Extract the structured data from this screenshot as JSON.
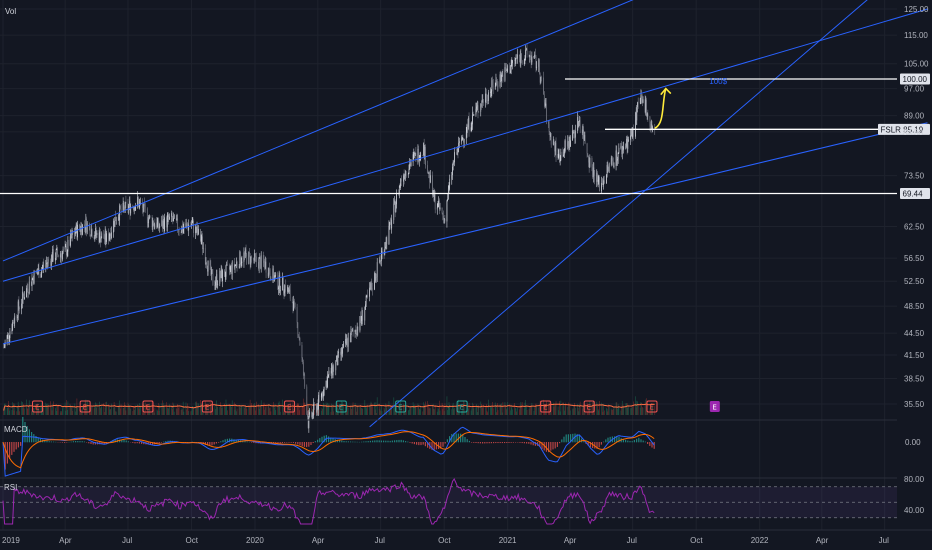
{
  "chart_data": {
    "type": "candlestick",
    "symbol": "FSLR",
    "last_price": "85.19",
    "volume_label": "Vol",
    "x_axis": {
      "range": [
        "2019-01-01",
        "2022-09-01"
      ],
      "ticks": [
        {
          "date": "2019-01-01",
          "label": "2019"
        },
        {
          "date": "2019-04-01",
          "label": "Apr"
        },
        {
          "date": "2019-07-01",
          "label": "Jul"
        },
        {
          "date": "2019-10-01",
          "label": "Oct"
        },
        {
          "date": "2020-01-01",
          "label": "2020"
        },
        {
          "date": "2020-04-01",
          "label": "Apr"
        },
        {
          "date": "2020-07-01",
          "label": "Jul"
        },
        {
          "date": "2020-10-01",
          "label": "Oct"
        },
        {
          "date": "2021-01-01",
          "label": "2021"
        },
        {
          "date": "2021-04-01",
          "label": "Apr"
        },
        {
          "date": "2021-07-01",
          "label": "Jul"
        },
        {
          "date": "2021-10-01",
          "label": "Oct"
        },
        {
          "date": "2022-01-01",
          "label": "2022"
        },
        {
          "date": "2022-04-01",
          "label": "Apr"
        },
        {
          "date": "2022-07-01",
          "label": "Jul"
        }
      ]
    },
    "price_axis": {
      "scale": "log",
      "ticks": [
        "125.00",
        "115.00",
        "105.00",
        "97.00",
        "89.00",
        "84.50",
        "73.50",
        "69.44",
        "62.50",
        "56.50",
        "52.50",
        "48.50",
        "44.50",
        "41.50",
        "38.50",
        "35.50"
      ]
    },
    "price_series": [
      [
        "2019-01-02",
        42.5
      ],
      [
        "2019-01-15",
        46.0
      ],
      [
        "2019-02-01",
        50.5
      ],
      [
        "2019-02-15",
        53.5
      ],
      [
        "2019-03-01",
        55.0
      ],
      [
        "2019-03-15",
        57.0
      ],
      [
        "2019-04-01",
        57.5
      ],
      [
        "2019-04-15",
        61.5
      ],
      [
        "2019-05-01",
        63.0
      ],
      [
        "2019-05-15",
        61.0
      ],
      [
        "2019-06-01",
        60.0
      ],
      [
        "2019-06-15",
        65.0
      ],
      [
        "2019-07-01",
        66.5
      ],
      [
        "2019-07-15",
        67.5
      ],
      [
        "2019-08-01",
        64.0
      ],
      [
        "2019-08-15",
        62.5
      ],
      [
        "2019-09-01",
        64.0
      ],
      [
        "2019-09-15",
        62.0
      ],
      [
        "2019-10-01",
        63.0
      ],
      [
        "2019-10-15",
        60.0
      ],
      [
        "2019-10-25",
        55.0
      ],
      [
        "2019-11-01",
        52.5
      ],
      [
        "2019-11-15",
        53.5
      ],
      [
        "2019-12-01",
        55.0
      ],
      [
        "2019-12-15",
        57.0
      ],
      [
        "2020-01-01",
        56.0
      ],
      [
        "2020-01-15",
        55.5
      ],
      [
        "2020-02-01",
        52.5
      ],
      [
        "2020-02-15",
        51.5
      ],
      [
        "2020-02-25",
        49.0
      ],
      [
        "2020-03-05",
        44.0
      ],
      [
        "2020-03-18",
        33.5
      ],
      [
        "2020-04-01",
        35.5
      ],
      [
        "2020-04-15",
        38.5
      ],
      [
        "2020-05-01",
        41.0
      ],
      [
        "2020-05-15",
        43.5
      ],
      [
        "2020-06-01",
        46.0
      ],
      [
        "2020-06-15",
        50.5
      ],
      [
        "2020-07-01",
        56.5
      ],
      [
        "2020-07-15",
        62.5
      ],
      [
        "2020-08-01",
        73.5
      ],
      [
        "2020-08-15",
        77.0
      ],
      [
        "2020-09-01",
        80.5
      ],
      [
        "2020-09-15",
        68.5
      ],
      [
        "2020-10-01",
        64.0
      ],
      [
        "2020-10-15",
        77.0
      ],
      [
        "2020-11-01",
        85.0
      ],
      [
        "2020-11-15",
        90.0
      ],
      [
        "2020-12-01",
        95.0
      ],
      [
        "2020-12-15",
        99.0
      ],
      [
        "2021-01-01",
        103.0
      ],
      [
        "2021-01-15",
        107.0
      ],
      [
        "2021-02-01",
        108.0
      ],
      [
        "2021-02-15",
        104.0
      ],
      [
        "2021-03-01",
        85.0
      ],
      [
        "2021-03-15",
        78.0
      ],
      [
        "2021-04-01",
        82.0
      ],
      [
        "2021-04-15",
        88.0
      ],
      [
        "2021-05-01",
        76.0
      ],
      [
        "2021-05-15",
        71.0
      ],
      [
        "2021-06-01",
        77.0
      ],
      [
        "2021-06-15",
        80.0
      ],
      [
        "2021-07-01",
        84.0
      ],
      [
        "2021-07-10",
        93.0
      ],
      [
        "2021-07-20",
        92.0
      ],
      [
        "2021-07-27",
        86.0
      ],
      [
        "2021-08-02",
        85.19
      ]
    ],
    "horizontal_levels": [
      {
        "price": "100.00",
        "label": "100.00"
      },
      {
        "price": "85.19",
        "label": "FSLR  85.19"
      },
      {
        "price": "84.50",
        "label": "84.50"
      },
      {
        "price": "69.44",
        "label": "69.44"
      }
    ],
    "annotations": [
      {
        "text": "100$",
        "date": "2021-10-20",
        "price": 98.5
      },
      {
        "text": "arrow",
        "from": [
          "2021-08-02",
          85.5
        ],
        "to": [
          "2021-08-18",
          97.0
        ]
      }
    ],
    "trendlines": [
      {
        "from": [
          "2019-01-01",
          56.0
        ],
        "to": [
          "2022-09-01",
          190.0
        ]
      },
      {
        "from": [
          "2019-01-01",
          52.5
        ],
        "to": [
          "2022-09-01",
          125.0
        ]
      },
      {
        "from": [
          "2019-01-01",
          43.0
        ],
        "to": [
          "2022-09-01",
          87.0
        ]
      },
      {
        "from": [
          "2020-06-15",
          33.0
        ],
        "to": [
          "2022-07-01",
          135.0
        ]
      }
    ],
    "earnings_markers": [
      {
        "date": "2019-02-20",
        "label": "E"
      },
      {
        "date": "2019-04-30",
        "label": "E"
      },
      {
        "date": "2019-07-30",
        "label": "E"
      },
      {
        "date": "2019-10-24",
        "label": "E"
      },
      {
        "date": "2020-02-20",
        "label": "E"
      },
      {
        "date": "2020-05-05",
        "label": "E"
      },
      {
        "date": "2020-07-30",
        "label": "E"
      },
      {
        "date": "2020-10-27",
        "label": "E"
      },
      {
        "date": "2021-02-25",
        "label": "E"
      },
      {
        "date": "2021-04-29",
        "label": "E"
      },
      {
        "date": "2021-07-29",
        "label": "E"
      }
    ],
    "macd": {
      "label": "MACD",
      "ticks": [
        "0.00"
      ]
    },
    "rsi": {
      "label": "RSI",
      "ticks": [
        "80.00",
        "40.00"
      ]
    }
  },
  "colors": {
    "background": "#131722",
    "grid": "#1e222d",
    "candle_up": "#d1d4dc",
    "candle_down": "#787b86",
    "trendline": "#2962ff",
    "level_line": "#ffffff",
    "arrow": "#ffeb3b",
    "annotation_text": "#2962ff",
    "volume_ma": "#ff7043",
    "macd_line": "#2962ff",
    "signal_line": "#ff6d00",
    "rsi_line": "#9c27b0",
    "rsi_band": "#7e57c2",
    "earnings_red": "#ef5350",
    "earnings_green": "#26a69a",
    "earnings_future": "#9c27b0"
  }
}
